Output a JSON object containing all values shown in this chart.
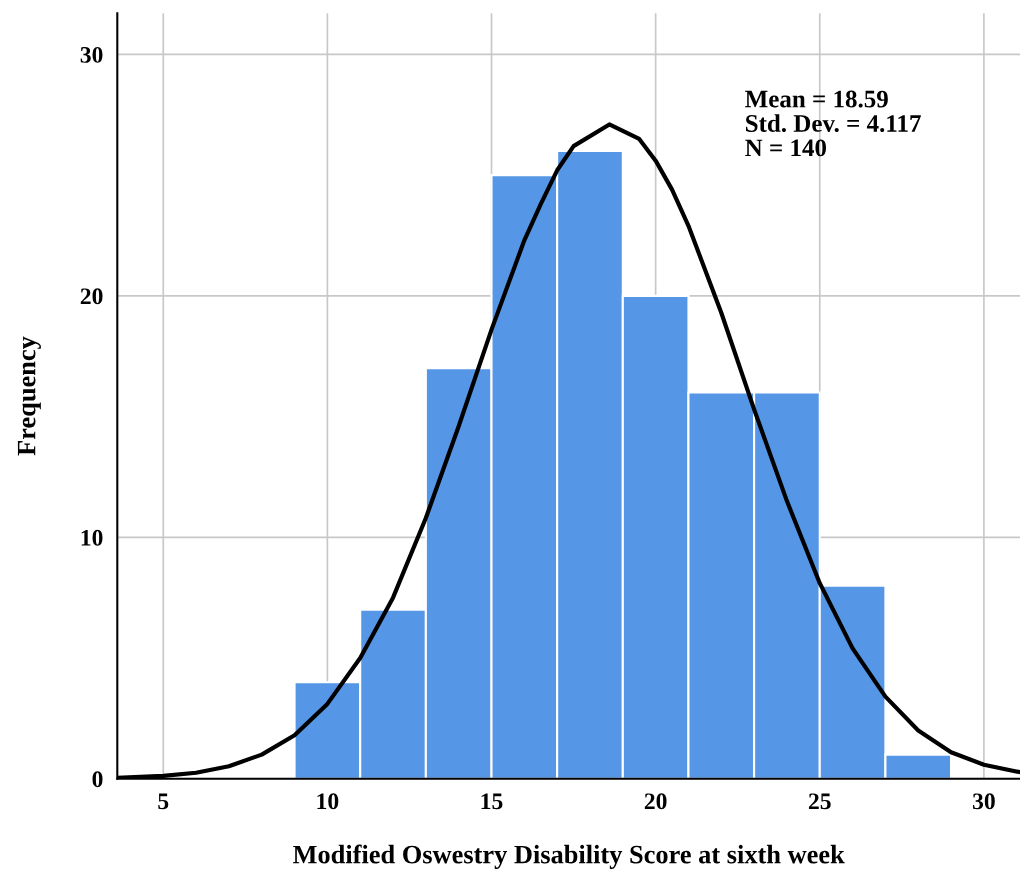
{
  "chart_data": {
    "type": "histogram",
    "xlabel": "Modified Oswestry Disability Score at sixth week",
    "ylabel": "Frequency",
    "annotations": [
      "Mean = 18.59\nStd. Dev. = 4.117\nN = 140"
    ],
    "bins": [
      9,
      11,
      13,
      15,
      17,
      19,
      21,
      23,
      25,
      27,
      29
    ],
    "series": [
      {
        "color": "#5596e6",
        "values": [
          4,
          7,
          17,
          25,
          26,
          20,
          16,
          16,
          8,
          1
        ]
      },
      {
        "type": "line",
        "color": "#000000",
        "x": [
          3.6,
          5,
          6,
          7,
          8,
          9,
          10,
          11,
          12,
          13,
          14,
          15,
          16,
          16.5,
          17,
          17.5,
          18.59,
          19.5,
          20,
          20.5,
          21,
          22,
          23,
          24,
          25,
          26,
          27,
          28,
          29,
          30,
          31.1
        ],
        "values": [
          0.04,
          0.12,
          0.25,
          0.52,
          1.0,
          1.8,
          3.1,
          5.0,
          7.5,
          10.8,
          14.6,
          18.6,
          22.3,
          23.8,
          25.2,
          26.2,
          27.1,
          26.5,
          25.6,
          24.4,
          22.9,
          19.3,
          15.3,
          11.5,
          8.1,
          5.4,
          3.4,
          2.0,
          1.1,
          0.58,
          0.27
        ]
      }
    ],
    "xlim": [
      3.6,
      31.1
    ],
    "xticks": [
      5,
      10,
      15,
      20,
      25,
      30
    ],
    "ylim": [
      0,
      31.7
    ],
    "yticks": [
      0,
      10,
      20,
      30
    ],
    "grid": true,
    "line_style": "solid",
    "marker": "none"
  }
}
